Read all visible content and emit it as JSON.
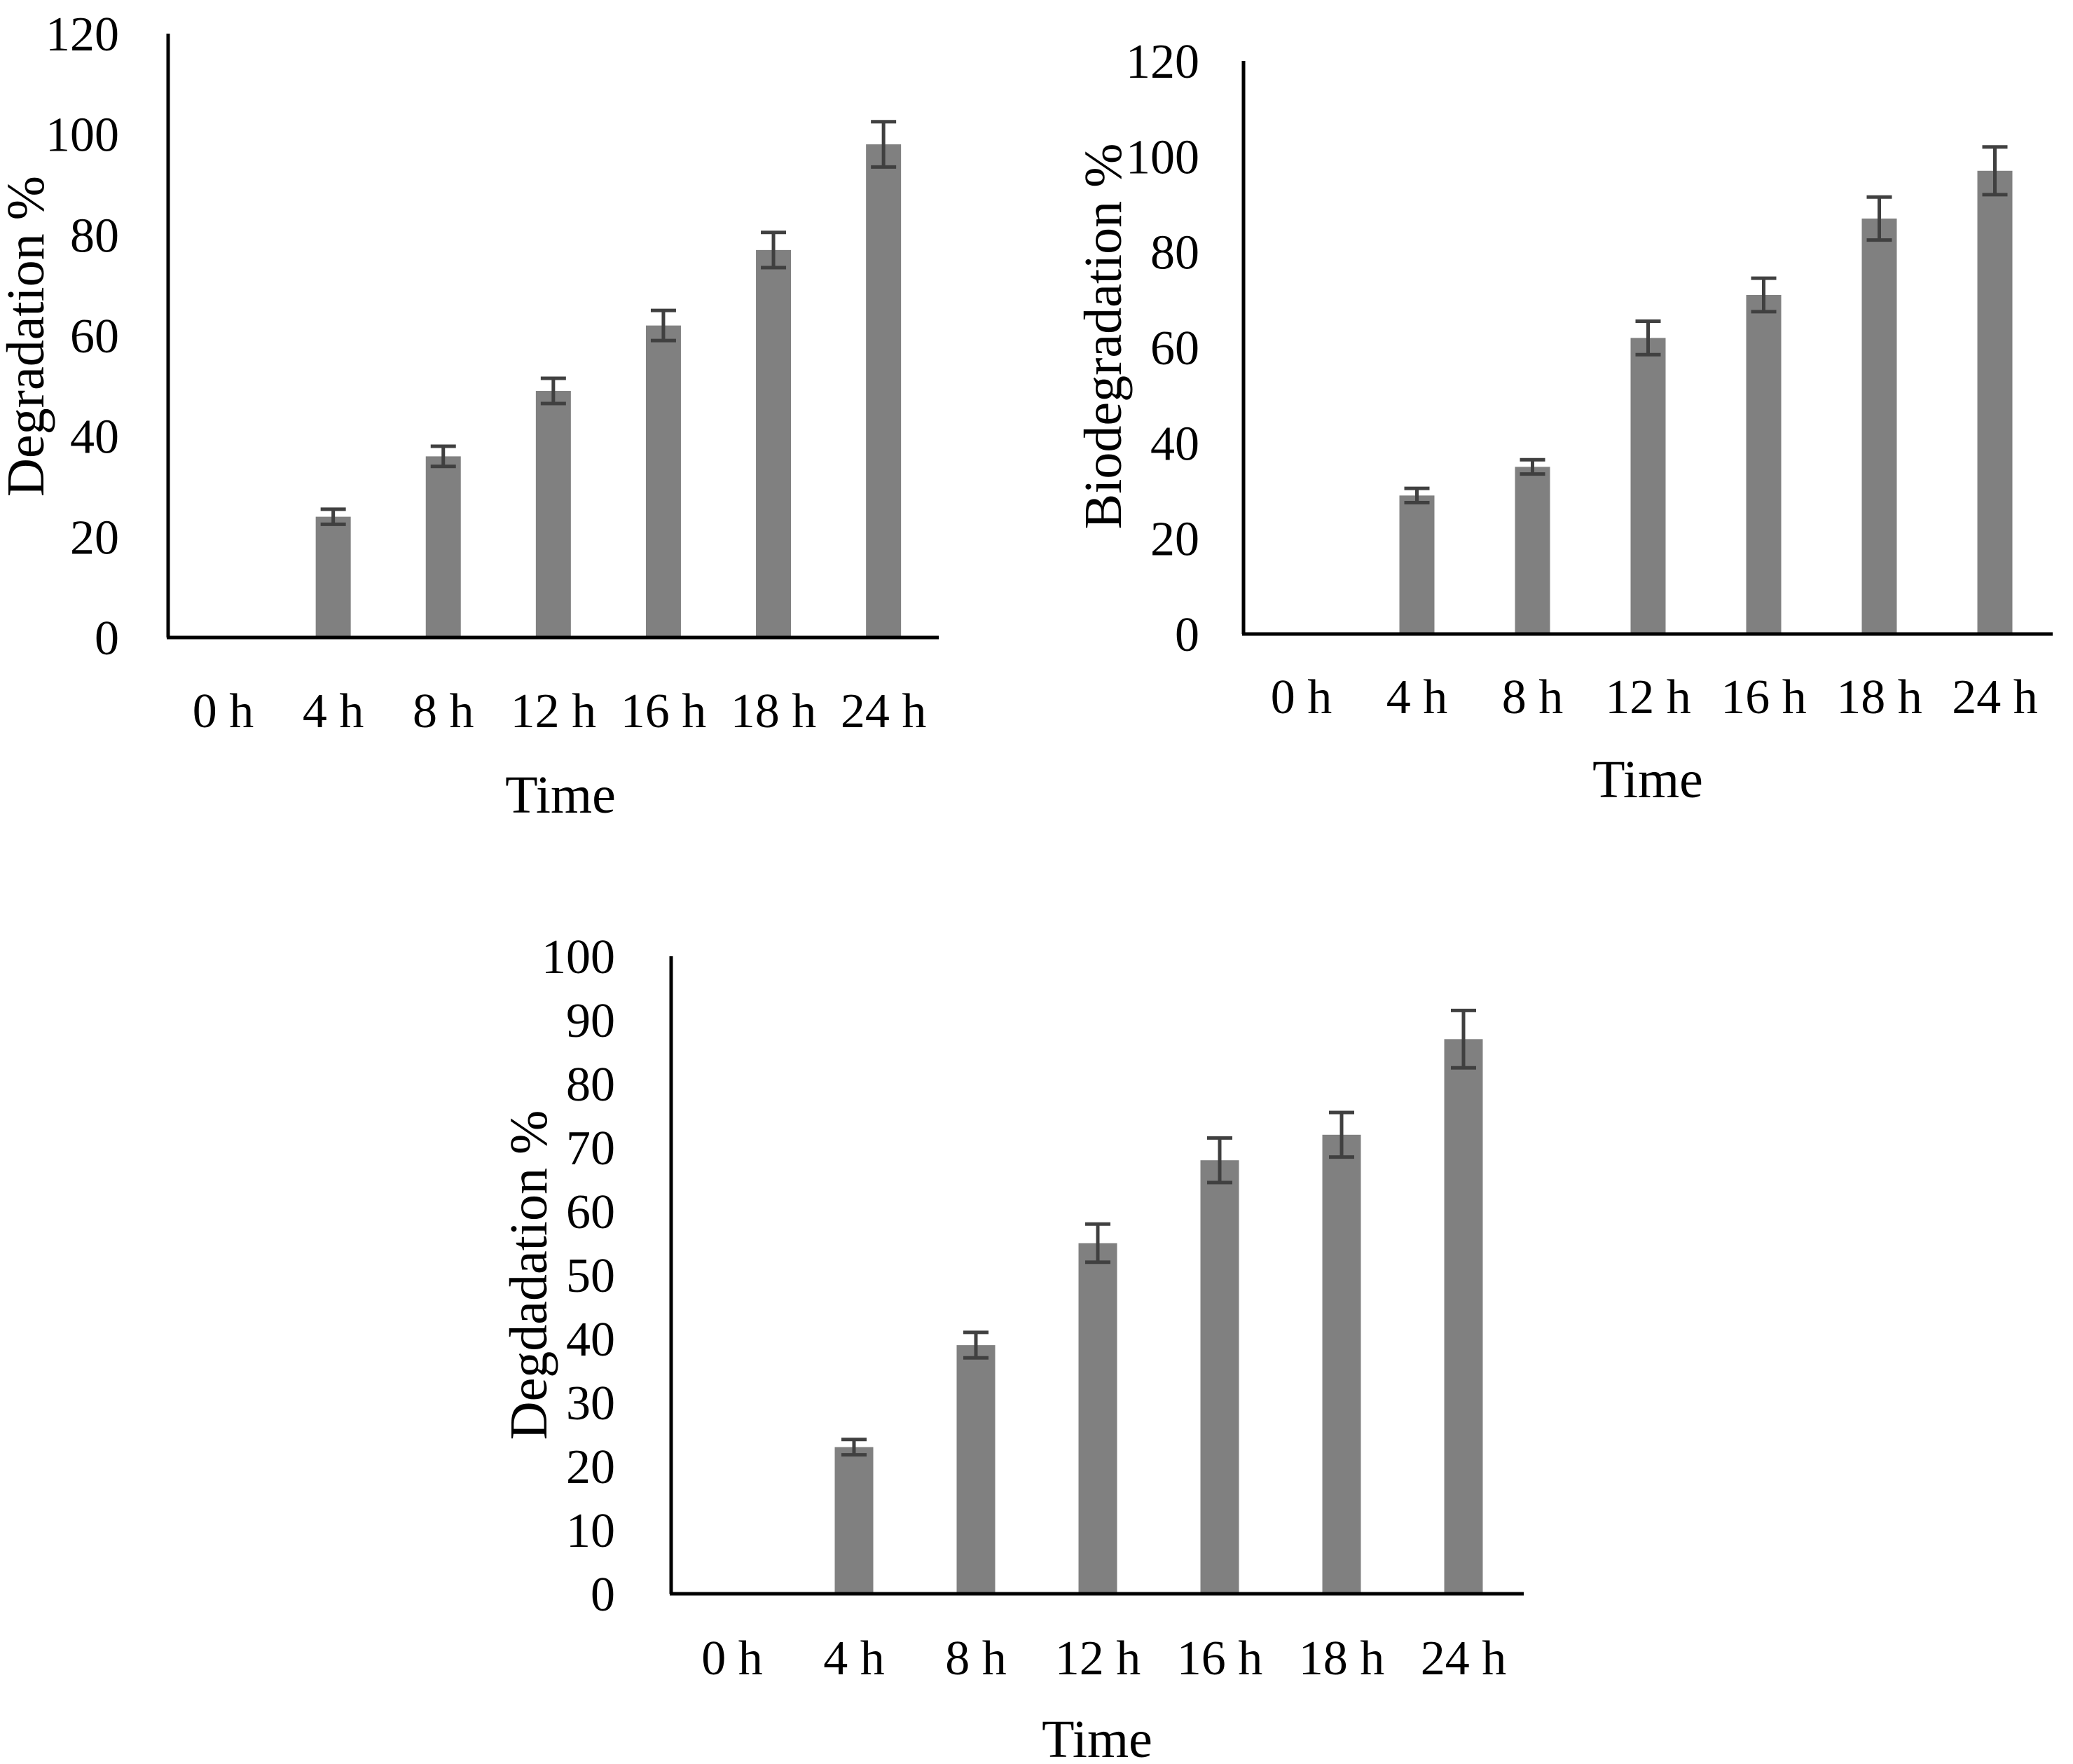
{
  "colors": {
    "bar": "#808080",
    "error_bar": "#404040",
    "axis": "#000000",
    "text": "#000000"
  },
  "chart_data": [
    {
      "type": "bar",
      "title": "",
      "categories": [
        "0 h",
        "4 h",
        "8 h",
        "12 h",
        "16 h",
        "18 h",
        "24 h"
      ],
      "values": [
        0,
        24,
        36,
        49,
        62,
        77,
        98
      ],
      "errors": [
        0,
        1.5,
        2,
        2.5,
        3,
        3.5,
        4.5
      ],
      "xlabel": "Time",
      "ylabel": "Degradation %",
      "ylim": [
        0,
        120
      ],
      "yticks": [
        "0",
        "20",
        "40",
        "60",
        "80",
        "100",
        "120"
      ]
    },
    {
      "type": "bar",
      "title": "",
      "categories": [
        "0 h",
        "4 h",
        "8 h",
        "12 h",
        "16 h",
        "18 h",
        "24 h"
      ],
      "values": [
        0,
        29,
        35,
        62,
        71,
        87,
        97
      ],
      "errors": [
        0,
        1.5,
        1.5,
        3.5,
        3.5,
        4.5,
        5
      ],
      "xlabel": "Time",
      "ylabel": "Biodegradation %",
      "ylim": [
        0,
        120
      ],
      "yticks": [
        "0",
        "20",
        "40",
        "60",
        "80",
        "100",
        "120"
      ]
    },
    {
      "type": "bar",
      "title": "",
      "categories": [
        "0 h",
        "4 h",
        "8 h",
        "12 h",
        "16 h",
        "18 h",
        "24 h"
      ],
      "values": [
        0,
        23,
        39,
        55,
        68,
        72,
        87
      ],
      "errors": [
        0,
        1.2,
        2,
        3,
        3.5,
        3.5,
        4.5
      ],
      "xlabel": "Time",
      "ylabel": "Degdadation  %",
      "ylim": [
        0,
        100
      ],
      "yticks": [
        "0",
        "10",
        "20",
        "30",
        "40",
        "50",
        "60",
        "70",
        "80",
        "90",
        "100"
      ]
    }
  ]
}
